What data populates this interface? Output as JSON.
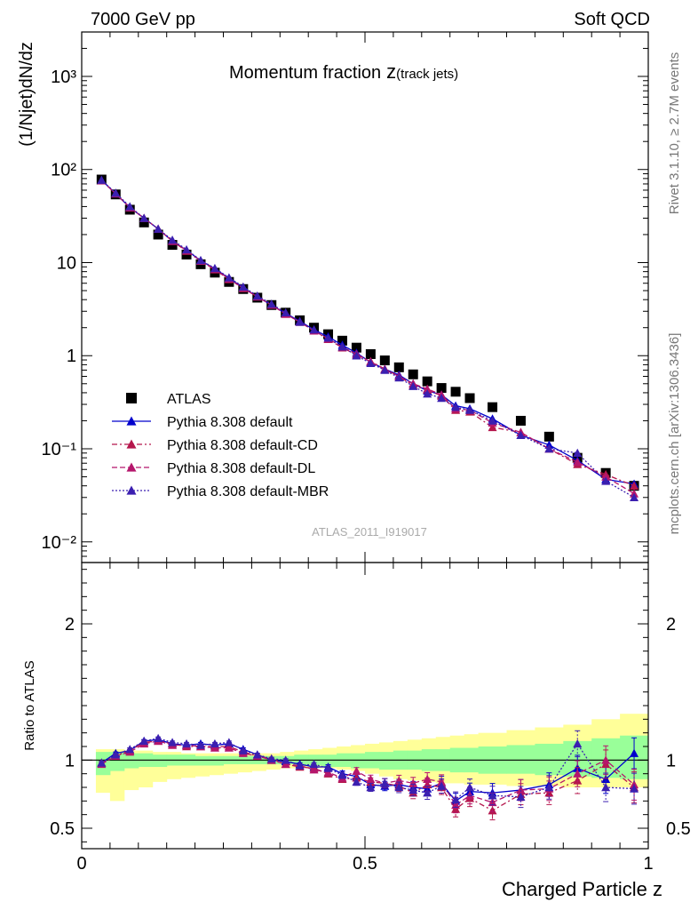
{
  "header": {
    "left": "7000 GeV pp",
    "right": "Soft QCD"
  },
  "side_text": {
    "rivet": "Rivet 3.1.10, ≥ 2.7M events",
    "mcplots": "mcplots.cern.ch [arXiv:1306.3436]"
  },
  "chart_data": [
    {
      "type": "scatter",
      "title": "Momentum fraction",
      "title_symbol": "z",
      "title_sub": "(track jets)",
      "ylabel": "(1/Njet)dN/dz",
      "xlim": [
        0,
        1
      ],
      "ylim": [
        0.006,
        3000
      ],
      "yscale": "log",
      "ytick_labels": [
        "10⁻²",
        "10⁻¹",
        "1",
        "10",
        "10²",
        "10³"
      ],
      "ytick_values": [
        0.01,
        0.1,
        1,
        10,
        100,
        1000
      ],
      "watermark": "ATLAS_2011_I919017",
      "legend_position": "left-middle",
      "x": [
        0.035,
        0.06,
        0.085,
        0.11,
        0.135,
        0.16,
        0.185,
        0.21,
        0.235,
        0.26,
        0.285,
        0.31,
        0.335,
        0.36,
        0.385,
        0.41,
        0.435,
        0.46,
        0.485,
        0.51,
        0.535,
        0.56,
        0.585,
        0.61,
        0.635,
        0.66,
        0.685,
        0.725,
        0.775,
        0.825,
        0.875,
        0.925,
        0.975
      ],
      "series": [
        {
          "name": "ATLAS",
          "color": "#000000",
          "marker": "square",
          "values": [
            78,
            54,
            37,
            27,
            20,
            15.5,
            12.2,
            9.6,
            7.8,
            6.2,
            5.2,
            4.2,
            3.5,
            2.9,
            2.4,
            2.0,
            1.7,
            1.45,
            1.22,
            1.04,
            0.89,
            0.75,
            0.63,
            0.53,
            0.45,
            0.41,
            0.35,
            0.28,
            0.2,
            0.135,
            0.08,
            0.055,
            0.04
          ]
        },
        {
          "name": "Pythia 8.308 default",
          "color": "#0000cc",
          "marker": "triangle",
          "dash": "solid",
          "values": [
            77,
            55,
            39,
            30,
            23,
            17,
            13.6,
            10.5,
            8.6,
            6.8,
            5.4,
            4.3,
            3.5,
            2.85,
            2.35,
            1.9,
            1.6,
            1.3,
            1.07,
            0.85,
            0.72,
            0.62,
            0.5,
            0.42,
            0.38,
            0.29,
            0.27,
            0.21,
            0.14,
            0.11,
            0.075,
            0.047,
            0.042
          ]
        },
        {
          "name": "Pythia 8.308 default-CD",
          "color": "#b5164c",
          "marker": "triangle",
          "dash": "dashdot",
          "values": [
            76,
            55,
            39,
            30,
            23,
            17,
            13.3,
            10.4,
            8.4,
            6.6,
            5.3,
            4.3,
            3.5,
            2.8,
            2.3,
            1.85,
            1.5,
            1.22,
            1.02,
            0.87,
            0.72,
            0.6,
            0.48,
            0.43,
            0.37,
            0.26,
            0.25,
            0.17,
            0.15,
            0.1,
            0.068,
            0.053,
            0.04
          ]
        },
        {
          "name": "Pythia 8.308 default-DL",
          "color": "#b5166c",
          "marker": "triangle",
          "dash": "dashed",
          "values": [
            76,
            55,
            39,
            30,
            23,
            17,
            13.5,
            10.4,
            8.5,
            6.7,
            5.3,
            4.3,
            3.5,
            2.8,
            2.3,
            1.85,
            1.52,
            1.24,
            1.04,
            0.86,
            0.71,
            0.6,
            0.5,
            0.44,
            0.38,
            0.27,
            0.26,
            0.19,
            0.15,
            0.1,
            0.072,
            0.05,
            0.033
          ]
        },
        {
          "name": "Pythia 8.308 default-MBR",
          "color": "#3b1fb0",
          "marker": "triangle",
          "dash": "dotted",
          "values": [
            77,
            56,
            40,
            30,
            23,
            17.5,
            13.8,
            10.6,
            8.7,
            6.9,
            5.5,
            4.4,
            3.6,
            2.9,
            2.3,
            1.9,
            1.55,
            1.25,
            1.0,
            0.83,
            0.7,
            0.58,
            0.47,
            0.39,
            0.35,
            0.28,
            0.26,
            0.2,
            0.14,
            0.1,
            0.09,
            0.045,
            0.03
          ]
        }
      ]
    },
    {
      "type": "scatter",
      "xlabel": "Charged Particle z",
      "ylabel": "Ratio to ATLAS",
      "xlim": [
        0,
        1
      ],
      "ylim": [
        0.35,
        2.45
      ],
      "xtick_labels": [
        "0",
        "0.5",
        "1"
      ],
      "xtick_values": [
        0,
        0.5,
        1
      ],
      "ytick_labels": [
        "0.5",
        "1",
        "2"
      ],
      "ytick_values": [
        0.5,
        1,
        2
      ],
      "bands": {
        "x_edges": [
          0.025,
          0.05,
          0.075,
          0.1,
          0.125,
          0.15,
          0.175,
          0.2,
          0.225,
          0.25,
          0.275,
          0.3,
          0.325,
          0.35,
          0.375,
          0.4,
          0.425,
          0.45,
          0.475,
          0.5,
          0.525,
          0.55,
          0.575,
          0.6,
          0.625,
          0.65,
          0.675,
          0.7,
          0.75,
          0.8,
          0.85,
          0.9,
          0.95,
          1.0
        ],
        "green_lo": [
          0.89,
          0.92,
          0.94,
          0.95,
          0.95,
          0.96,
          0.96,
          0.96,
          0.96,
          0.97,
          0.97,
          0.97,
          0.97,
          0.97,
          0.96,
          0.96,
          0.95,
          0.95,
          0.94,
          0.94,
          0.93,
          0.93,
          0.93,
          0.92,
          0.92,
          0.91,
          0.91,
          0.9,
          0.9,
          0.89,
          0.88,
          0.87,
          0.86
        ],
        "green_hi": [
          1.06,
          1.06,
          1.05,
          1.05,
          1.04,
          1.04,
          1.04,
          1.03,
          1.03,
          1.03,
          1.03,
          1.03,
          1.03,
          1.03,
          1.04,
          1.04,
          1.04,
          1.05,
          1.05,
          1.06,
          1.06,
          1.07,
          1.07,
          1.08,
          1.08,
          1.09,
          1.09,
          1.1,
          1.11,
          1.12,
          1.14,
          1.16,
          1.18
        ],
        "yellow_lo": [
          0.76,
          0.7,
          0.78,
          0.8,
          0.84,
          0.86,
          0.87,
          0.88,
          0.89,
          0.9,
          0.91,
          0.92,
          0.93,
          0.94,
          0.94,
          0.94,
          0.94,
          0.93,
          0.92,
          0.9,
          0.88,
          0.86,
          0.85,
          0.84,
          0.83,
          0.83,
          0.82,
          0.82,
          0.81,
          0.81,
          0.8,
          0.8,
          0.8
        ],
        "yellow_hi": [
          1.08,
          1.08,
          1.07,
          1.07,
          1.06,
          1.06,
          1.05,
          1.05,
          1.05,
          1.05,
          1.05,
          1.05,
          1.05,
          1.06,
          1.07,
          1.08,
          1.09,
          1.1,
          1.11,
          1.12,
          1.13,
          1.14,
          1.15,
          1.16,
          1.17,
          1.18,
          1.19,
          1.2,
          1.22,
          1.24,
          1.26,
          1.3,
          1.34
        ]
      },
      "x": [
        0.035,
        0.06,
        0.085,
        0.11,
        0.135,
        0.16,
        0.185,
        0.21,
        0.235,
        0.26,
        0.285,
        0.31,
        0.335,
        0.36,
        0.385,
        0.41,
        0.435,
        0.46,
        0.485,
        0.51,
        0.535,
        0.56,
        0.585,
        0.61,
        0.635,
        0.66,
        0.685,
        0.725,
        0.775,
        0.825,
        0.875,
        0.925,
        0.975
      ],
      "series": [
        {
          "name": "Pythia 8.308 default",
          "color": "#0000cc",
          "dash": "solid",
          "values": [
            0.98,
            1.05,
            1.07,
            1.14,
            1.15,
            1.12,
            1.11,
            1.12,
            1.11,
            1.12,
            1.08,
            1.04,
            1.0,
            0.99,
            0.97,
            0.95,
            0.95,
            0.9,
            0.88,
            0.82,
            0.81,
            0.82,
            0.8,
            0.79,
            0.83,
            0.7,
            0.77,
            0.76,
            0.78,
            0.82,
            0.94,
            0.86,
            1.05
          ]
        },
        {
          "name": "Pythia 8.308 default-CD",
          "color": "#b5164c",
          "dash": "dashdot",
          "values": [
            0.98,
            1.03,
            1.07,
            1.13,
            1.14,
            1.12,
            1.1,
            1.1,
            1.1,
            1.1,
            1.06,
            1.03,
            1.01,
            0.97,
            0.95,
            0.94,
            0.9,
            0.86,
            0.87,
            0.84,
            0.83,
            0.81,
            0.76,
            0.82,
            0.8,
            0.64,
            0.72,
            0.63,
            0.75,
            0.76,
            0.85,
            0.97,
            0.8
          ]
        },
        {
          "name": "Pythia 8.308 default-DL",
          "color": "#b5166c",
          "dash": "dashed",
          "values": [
            0.97,
            1.03,
            1.06,
            1.12,
            1.14,
            1.11,
            1.11,
            1.1,
            1.09,
            1.09,
            1.05,
            1.03,
            1.0,
            0.97,
            0.96,
            0.93,
            0.91,
            0.87,
            0.92,
            0.86,
            0.83,
            0.85,
            0.83,
            0.86,
            0.84,
            0.67,
            0.74,
            0.69,
            0.78,
            0.79,
            0.9,
            1.0,
            0.82
          ]
        },
        {
          "name": "Pythia 8.308 default-MBR",
          "color": "#3b1fb0",
          "dash": "dotted",
          "values": [
            0.98,
            1.04,
            1.08,
            1.14,
            1.16,
            1.13,
            1.12,
            1.11,
            1.12,
            1.13,
            1.07,
            1.04,
            1.01,
            1.0,
            0.96,
            0.97,
            0.94,
            0.89,
            0.84,
            0.8,
            0.83,
            0.8,
            0.78,
            0.76,
            0.81,
            0.71,
            0.8,
            0.74,
            0.73,
            0.8,
            1.12,
            0.8,
            0.79
          ]
        }
      ]
    }
  ]
}
